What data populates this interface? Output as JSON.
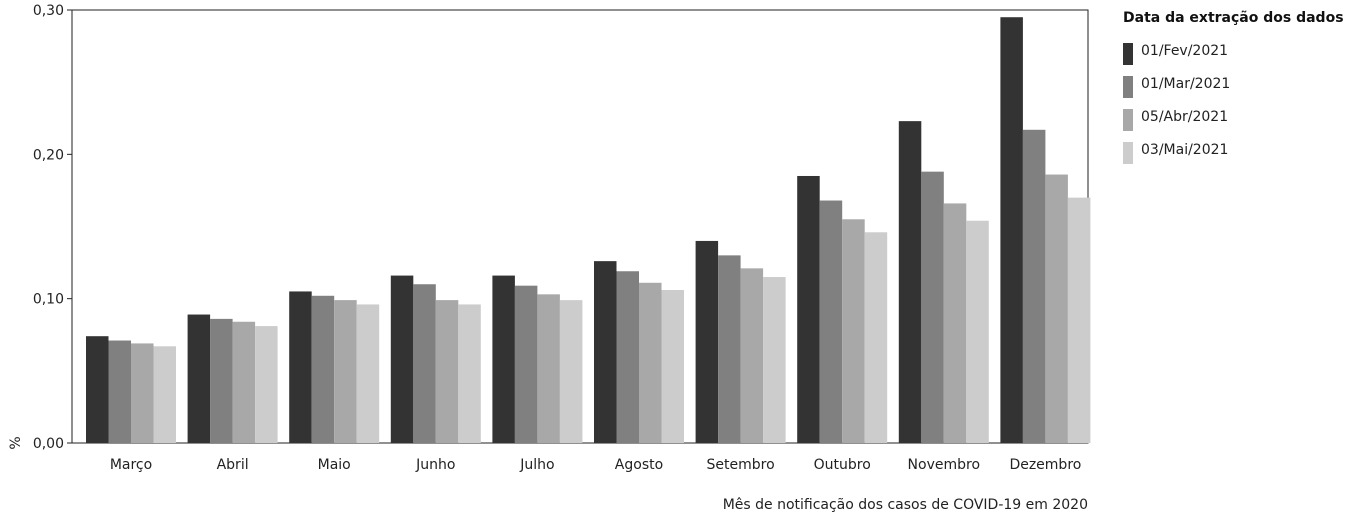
{
  "chart_data": {
    "type": "bar",
    "xlabel": "Mês de notificação dos casos de COVID-19 em 2020",
    "ylabel": "%",
    "ylim": [
      0,
      0.3
    ],
    "yticks": [
      0,
      0.1,
      0.2,
      0.3
    ],
    "ytick_labels": [
      "0,00",
      "0,10",
      "0,20",
      "0,30"
    ],
    "categories": [
      "Março",
      "Abril",
      "Maio",
      "Junho",
      "Julho",
      "Agosto",
      "Setembro",
      "Outubro",
      "Novembro",
      "Dezembro"
    ],
    "legend_title": "Data da extração dos dados",
    "legend_position": "right",
    "grid": false,
    "series": [
      {
        "name": "01/Fev/2021",
        "color": "#333333",
        "values": [
          0.074,
          0.089,
          0.105,
          0.116,
          0.116,
          0.126,
          0.14,
          0.185,
          0.223,
          0.295
        ]
      },
      {
        "name": "01/Mar/2021",
        "color": "#808080",
        "values": [
          0.071,
          0.086,
          0.102,
          0.11,
          0.109,
          0.119,
          0.13,
          0.168,
          0.188,
          0.217
        ]
      },
      {
        "name": "05/Abr/2021",
        "color": "#a8a8a8",
        "values": [
          0.069,
          0.084,
          0.099,
          0.099,
          0.103,
          0.111,
          0.121,
          0.155,
          0.166,
          0.186
        ]
      },
      {
        "name": "03/Mai/2021",
        "color": "#cccccc",
        "values": [
          0.067,
          0.081,
          0.096,
          0.096,
          0.099,
          0.106,
          0.115,
          0.146,
          0.154,
          0.17
        ]
      }
    ]
  }
}
